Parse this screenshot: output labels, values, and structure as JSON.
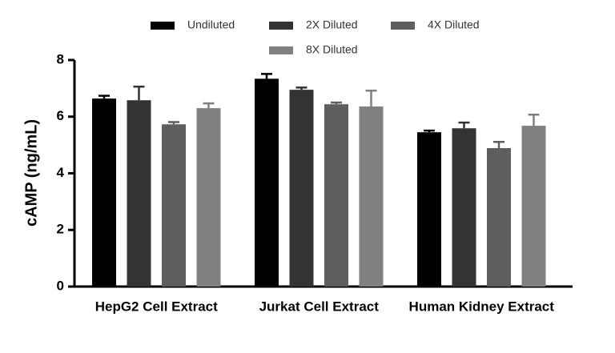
{
  "chart_data": {
    "type": "bar",
    "y_label": "cAMP (ng/mL)",
    "categories": [
      "HepG2 Cell Extract",
      "Jurkat Cell Extract",
      "Human Kidney Extract"
    ],
    "series": [
      {
        "name": "Undiluted",
        "color": "#000000",
        "values": [
          6.64,
          7.34,
          5.45
        ],
        "errors": [
          0.1,
          0.17,
          0.06
        ]
      },
      {
        "name": "2X Diluted",
        "color": "#333333",
        "values": [
          6.58,
          6.95,
          5.59
        ],
        "errors": [
          0.48,
          0.08,
          0.2
        ]
      },
      {
        "name": "4X Diluted",
        "color": "#5e5e5e",
        "values": [
          5.73,
          6.44,
          4.89
        ],
        "errors": [
          0.08,
          0.06,
          0.22
        ]
      },
      {
        "name": "8X Diluted",
        "color": "#808080",
        "values": [
          6.3,
          6.36,
          5.68
        ],
        "errors": [
          0.17,
          0.56,
          0.39
        ]
      }
    ],
    "ylim": [
      0,
      8
    ],
    "yticks": [
      0,
      2,
      4,
      6,
      8
    ],
    "grid": false,
    "legend": "top"
  }
}
